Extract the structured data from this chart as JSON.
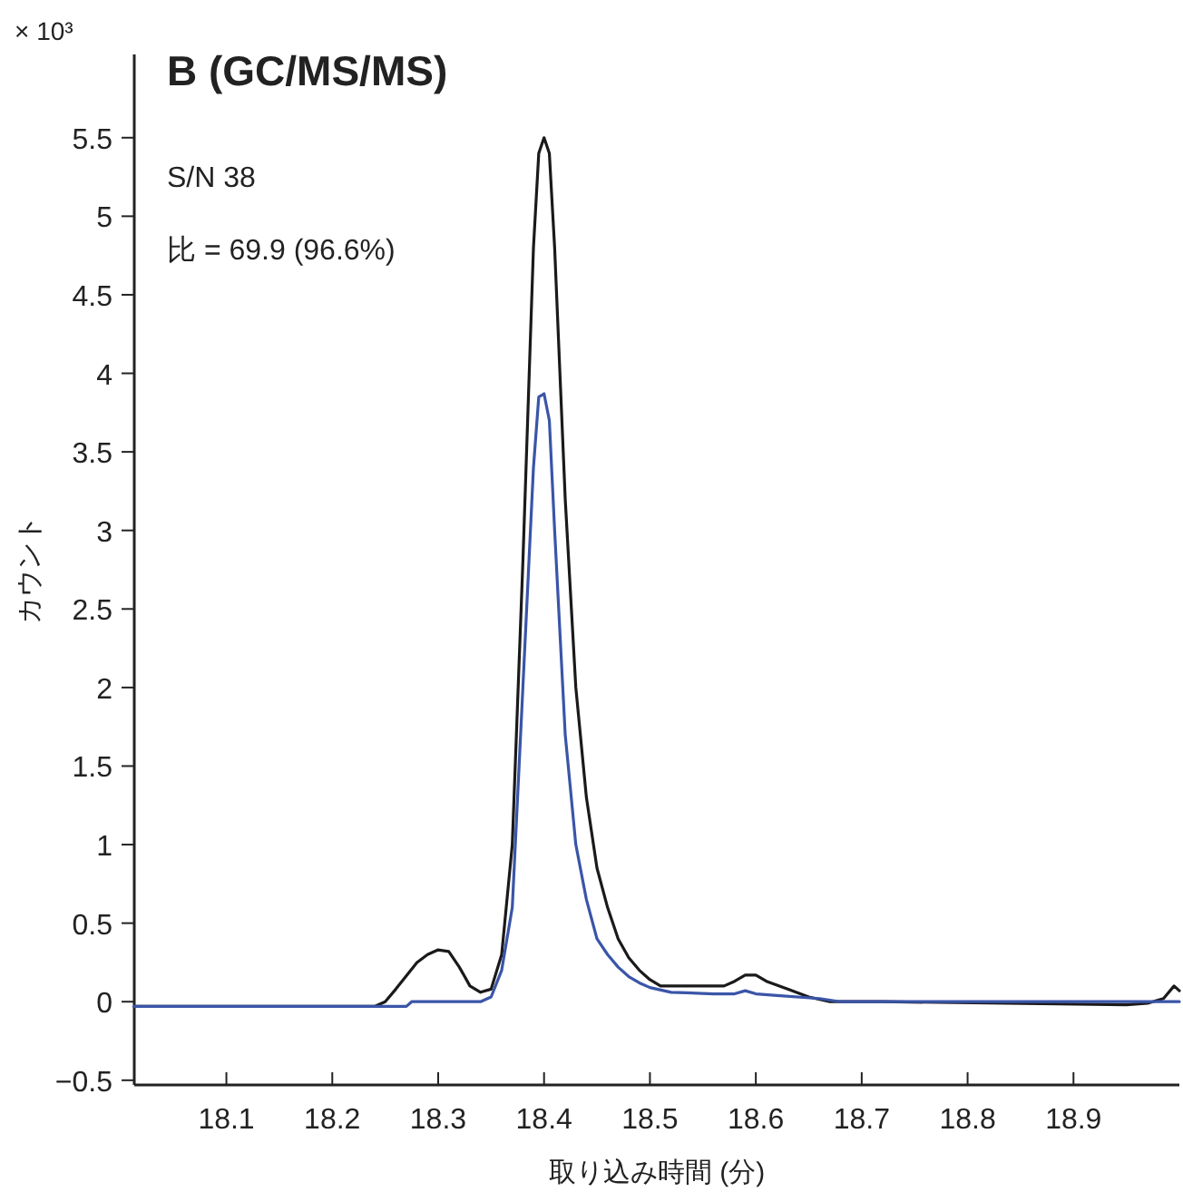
{
  "chart_data": {
    "type": "line",
    "title": "B (GC/MS/MS)",
    "xlabel": "取り込み時間 (分)",
    "ylabel": "カウント",
    "annotations": [
      "× 10³",
      "S/N 38",
      "比 = 69.9 (96.6%)"
    ],
    "xlim": [
      18.013,
      19.0
    ],
    "xticks": [
      18.1,
      18.2,
      18.3,
      18.4,
      18.5,
      18.6,
      18.7,
      18.8,
      18.9
    ],
    "ylim": [
      -0.53,
      6.03
    ],
    "yticks": [
      {
        "value": -0.5,
        "label": "−0.5"
      },
      0,
      0.5,
      1,
      1.5,
      2,
      2.5,
      3,
      3.5,
      4,
      4.5,
      5,
      5.5
    ],
    "line_style": "solid",
    "series": [
      {
        "color": "#1a1a1a",
        "x": [
          18.013,
          18.24,
          18.25,
          18.26,
          18.28,
          18.29,
          18.3,
          18.31,
          18.32,
          18.33,
          18.34,
          18.35,
          18.36,
          18.37,
          18.38,
          18.39,
          18.395,
          18.4,
          18.405,
          18.41,
          18.42,
          18.43,
          18.44,
          18.45,
          18.46,
          18.47,
          18.48,
          18.49,
          18.5,
          18.51,
          18.52,
          18.57,
          18.58,
          18.59,
          18.6,
          18.61,
          18.63,
          18.65,
          18.67,
          18.69,
          18.71,
          18.72,
          18.95,
          18.97,
          18.985,
          18.995,
          19.0
        ],
        "values": [
          -0.03,
          -0.03,
          0.0,
          0.08,
          0.25,
          0.3,
          0.33,
          0.32,
          0.22,
          0.1,
          0.06,
          0.08,
          0.3,
          1.0,
          2.8,
          4.8,
          5.4,
          5.5,
          5.4,
          4.8,
          3.2,
          2.0,
          1.3,
          0.85,
          0.6,
          0.4,
          0.28,
          0.2,
          0.14,
          0.1,
          0.1,
          0.1,
          0.13,
          0.17,
          0.17,
          0.13,
          0.08,
          0.03,
          0.0,
          0.0,
          0.0,
          0.0,
          -0.02,
          -0.01,
          0.02,
          0.1,
          0.07
        ]
      },
      {
        "color": "#3a55a8",
        "x": [
          18.013,
          18.27,
          18.275,
          18.34,
          18.35,
          18.36,
          18.37,
          18.38,
          18.39,
          18.395,
          18.4,
          18.405,
          18.41,
          18.42,
          18.43,
          18.44,
          18.45,
          18.46,
          18.47,
          18.48,
          18.49,
          18.5,
          18.52,
          18.56,
          18.58,
          18.59,
          18.6,
          18.62,
          18.66,
          18.68,
          19.0
        ],
        "values": [
          -0.03,
          -0.03,
          0.0,
          0.0,
          0.03,
          0.2,
          0.6,
          2.0,
          3.4,
          3.85,
          3.87,
          3.7,
          3.0,
          1.7,
          1.0,
          0.65,
          0.4,
          0.3,
          0.22,
          0.16,
          0.12,
          0.09,
          0.06,
          0.05,
          0.05,
          0.07,
          0.05,
          0.04,
          0.02,
          0.0,
          0.0
        ]
      }
    ]
  }
}
